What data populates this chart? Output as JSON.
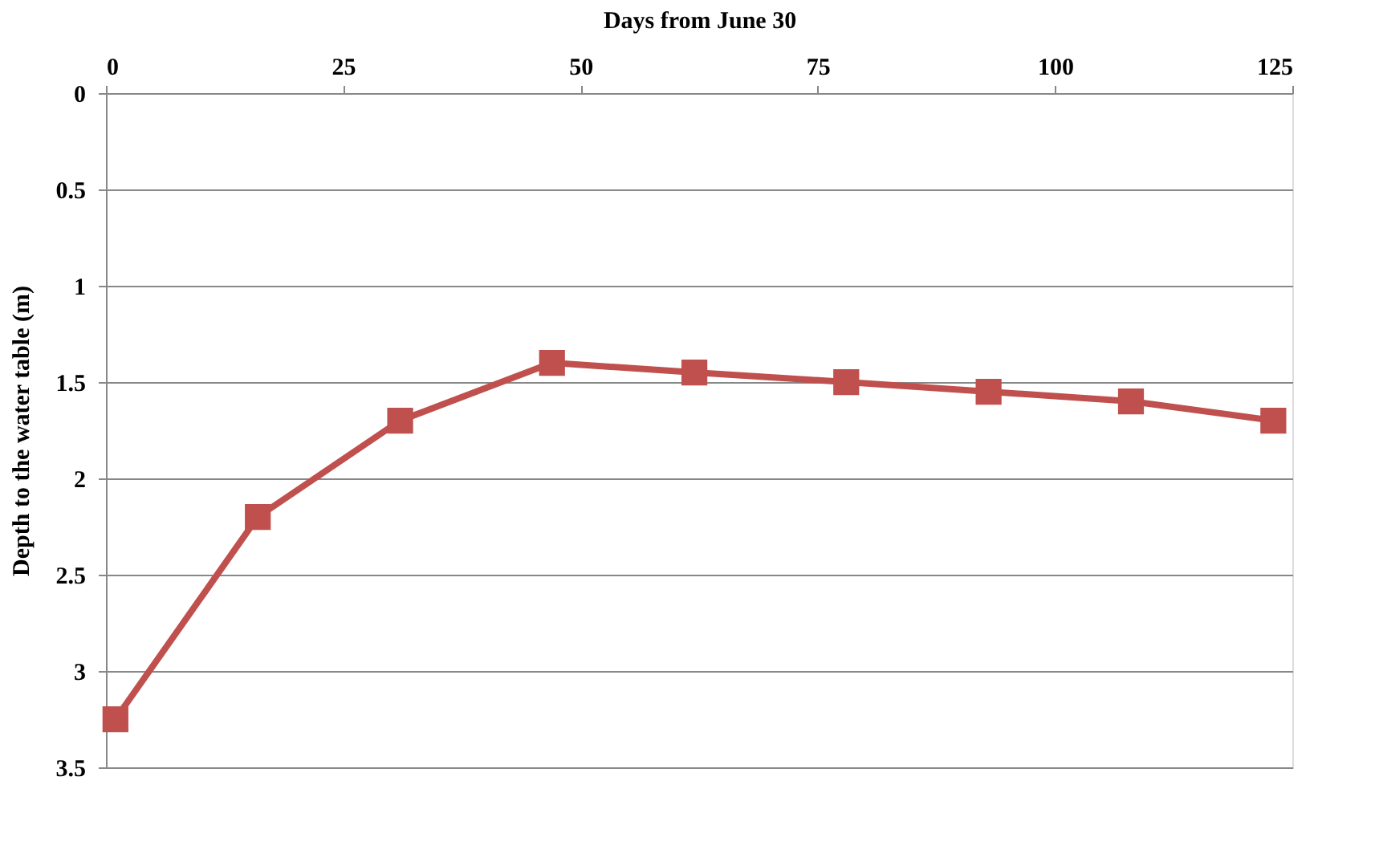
{
  "chart_data": {
    "type": "line",
    "xlabel": "Days from June 30",
    "ylabel": "Depth to the water table (m)",
    "x": [
      1,
      16,
      31,
      47,
      62,
      78,
      93,
      108,
      123
    ],
    "series": [
      {
        "color": "#c0504d",
        "values": [
          3.25,
          2.2,
          1.7,
          1.4,
          1.45,
          1.5,
          1.55,
          1.6,
          1.7
        ]
      }
    ],
    "xlim": [
      0,
      125
    ],
    "xticks": [
      0,
      25,
      50,
      75,
      100,
      125
    ],
    "ylim": [
      3.5,
      0
    ],
    "yticks": [
      0,
      0.5,
      1,
      1.5,
      2,
      2.5,
      3,
      3.5
    ],
    "grid": "y",
    "marker": "square",
    "line_style": "solid"
  }
}
